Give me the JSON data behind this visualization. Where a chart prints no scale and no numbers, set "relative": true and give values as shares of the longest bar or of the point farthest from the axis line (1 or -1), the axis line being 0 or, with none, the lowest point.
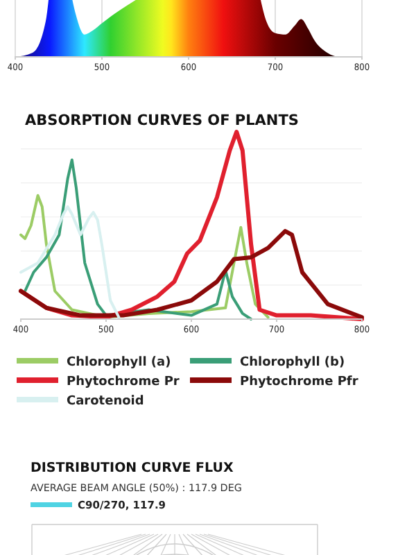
{
  "chart_data": [
    {
      "type": "area",
      "relative": true,
      "x": [
        400,
        420,
        435,
        445,
        450,
        460,
        470,
        480,
        490,
        500,
        520,
        550,
        580,
        600,
        620,
        640,
        660,
        670,
        680,
        690,
        700,
        712,
        722,
        730,
        738,
        745,
        760,
        775,
        800
      ],
      "values": [
        0,
        0.03,
        0.25,
        0.8,
        1,
        0.6,
        0.3,
        0.16,
        0.19,
        0.24,
        0.33,
        0.45,
        0.58,
        0.7,
        0.8,
        0.9,
        0.95,
        0.85,
        0.5,
        0.25,
        0.17,
        0.16,
        0.22,
        0.27,
        0.2,
        0.12,
        0.03,
        0,
        0
      ],
      "xlim": [
        400,
        800
      ],
      "xticks": [
        400,
        500,
        600,
        700,
        800
      ],
      "grid": "x"
    },
    {
      "type": "line",
      "relative": true,
      "title": "ABSORPTION CURVES OF PLANTS",
      "xlim": [
        400,
        800
      ],
      "xticks": [
        400,
        500,
        600,
        700,
        800
      ],
      "grid": "y",
      "legend": "bottom",
      "series": [
        {
          "name": "Chlorophyll (a)",
          "color": "#9ccc65",
          "x": [
            400,
            405,
            412,
            420,
            425,
            430,
            440,
            460,
            500,
            550,
            600,
            640,
            650,
            658,
            665,
            675,
            690
          ],
          "values": [
            0.45,
            0.43,
            0.5,
            0.66,
            0.6,
            0.4,
            0.15,
            0.05,
            0.01,
            0.03,
            0.04,
            0.06,
            0.3,
            0.49,
            0.3,
            0.08,
            0.01
          ]
        },
        {
          "name": "Chlorophyll (b)",
          "color": "#3a9e77",
          "x": [
            405,
            415,
            430,
            445,
            455,
            460,
            465,
            475,
            490,
            500,
            550,
            600,
            630,
            640,
            648,
            660,
            670
          ],
          "values": [
            0.15,
            0.25,
            0.33,
            0.45,
            0.75,
            0.85,
            0.7,
            0.3,
            0.08,
            0.02,
            0.05,
            0.02,
            0.08,
            0.26,
            0.12,
            0.03,
            0
          ]
        },
        {
          "name": "Phytochrome Pr",
          "color": "#e0202e",
          "x": [
            400,
            430,
            460,
            500,
            530,
            560,
            580,
            595,
            610,
            630,
            645,
            653,
            660,
            670,
            680,
            700,
            740,
            800
          ],
          "values": [
            0.15,
            0.06,
            0.02,
            0.01,
            0.05,
            0.12,
            0.2,
            0.35,
            0.42,
            0.65,
            0.9,
            1,
            0.9,
            0.4,
            0.05,
            0.02,
            0.02,
            0
          ]
        },
        {
          "name": "Phytochrome Pfr",
          "color": "#8b0a0a",
          "x": [
            400,
            430,
            470,
            520,
            560,
            600,
            630,
            650,
            670,
            690,
            710,
            718,
            730,
            760,
            800
          ],
          "values": [
            0.15,
            0.06,
            0.02,
            0.02,
            0.05,
            0.1,
            0.2,
            0.32,
            0.33,
            0.38,
            0.47,
            0.45,
            0.25,
            0.08,
            0.01
          ]
        },
        {
          "name": "Carotenoid",
          "color": "#d8f0f0",
          "x": [
            400,
            420,
            440,
            450,
            455,
            460,
            470,
            480,
            485,
            490,
            495,
            505,
            515
          ],
          "values": [
            0.25,
            0.3,
            0.45,
            0.56,
            0.6,
            0.56,
            0.45,
            0.54,
            0.57,
            0.53,
            0.4,
            0.1,
            0.01
          ]
        }
      ]
    },
    {
      "type": "other",
      "title": "DISTRIBUTION CURVE FLUX",
      "subtitle": "AVERAGE BEAM ANGLE  (50%) : 117.9 DEG",
      "annotations": [
        "C90/270, 117.9"
      ]
    }
  ]
}
